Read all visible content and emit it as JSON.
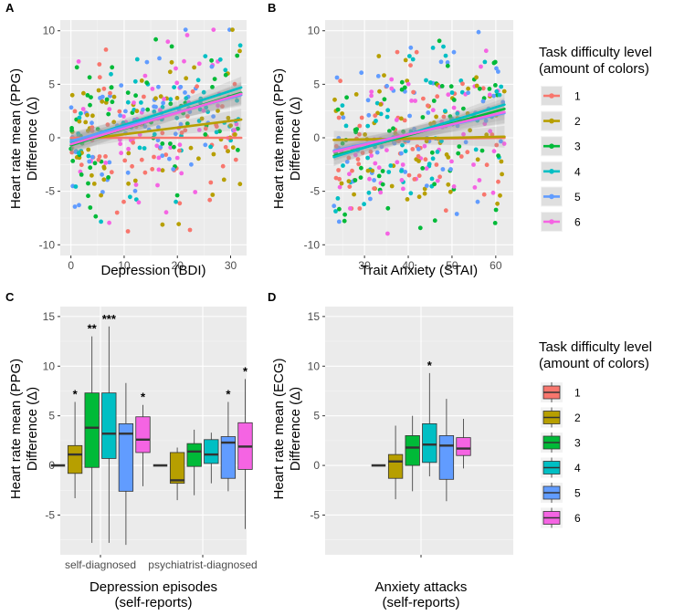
{
  "figure": {
    "panel_labels": [
      "A",
      "B",
      "C",
      "D"
    ],
    "legend_title_lines": [
      "Task difficulty level",
      "(amount of colors)"
    ],
    "levels": [
      "1",
      "2",
      "3",
      "4",
      "5",
      "6"
    ],
    "colors": [
      "#F8766D",
      "#B79F00",
      "#00BA38",
      "#00BFC4",
      "#619CFF",
      "#F564E3"
    ]
  },
  "chart_data": [
    {
      "id": "A",
      "type": "scatter",
      "xlabel": "Depression (BDI)",
      "ylabel_lines": [
        "Heart rate mean (PPG)",
        "Difference (Δ)"
      ],
      "xlim": [
        -2,
        33
      ],
      "ylim": [
        -11,
        11
      ],
      "xticks": [
        0,
        10,
        20,
        30
      ],
      "yticks": [
        -10,
        -5,
        0,
        5,
        10
      ],
      "x_range": [
        0,
        32
      ],
      "n_points": 360,
      "seed": 7,
      "fit_lines": [
        {
          "level": "1",
          "y_at_xmin": 0.0,
          "y_at_xmax": 0.0
        },
        {
          "level": "2",
          "y_at_xmin": -0.3,
          "y_at_xmax": 1.7
        },
        {
          "level": "3",
          "y_at_xmin": -0.7,
          "y_at_xmax": 4.2
        },
        {
          "level": "4",
          "y_at_xmin": -0.4,
          "y_at_xmax": 4.7
        },
        {
          "level": "5",
          "y_at_xmin": -0.3,
          "y_at_xmax": 4.0
        },
        {
          "level": "6",
          "y_at_xmin": -0.6,
          "y_at_xmax": 4.1
        }
      ]
    },
    {
      "id": "B",
      "type": "scatter",
      "xlabel": "Trait Anxiety (STAI)",
      "ylabel_lines": [
        "Heart rate mean (PPG)",
        "Difference (Δ)"
      ],
      "xlim": [
        21,
        64
      ],
      "ylim": [
        -11,
        11
      ],
      "xticks": [
        30,
        40,
        50,
        60
      ],
      "yticks": [
        -10,
        -5,
        0,
        5,
        10
      ],
      "x_range": [
        23,
        62
      ],
      "n_points": 360,
      "seed": 13,
      "fit_lines": [
        {
          "level": "1",
          "y_at_xmin": -0.2,
          "y_at_xmax": 0.0
        },
        {
          "level": "2",
          "y_at_xmin": -0.2,
          "y_at_xmax": 0.1
        },
        {
          "level": "3",
          "y_at_xmin": -1.7,
          "y_at_xmax": 2.7
        },
        {
          "level": "4",
          "y_at_xmin": -1.8,
          "y_at_xmax": 3.1
        },
        {
          "level": "5",
          "y_at_xmin": -1.2,
          "y_at_xmax": 2.3
        },
        {
          "level": "6",
          "y_at_xmin": -1.3,
          "y_at_xmax": 2.4
        }
      ]
    },
    {
      "id": "C",
      "type": "boxplot",
      "xlabel_lines": [
        "Depression episodes",
        "(self-reports)"
      ],
      "ylabel_lines": [
        "Heart rate mean (PPG)",
        "Difference (Δ)"
      ],
      "categories": [
        "self-diagnosed",
        "psychiatrist-diagnosed"
      ],
      "ylim": [
        -9,
        16
      ],
      "yticks": [
        -5,
        0,
        5,
        10,
        15
      ],
      "groups": [
        {
          "category": "self-diagnosed",
          "boxes": [
            {
              "level": "1",
              "min": 0,
              "q1": 0,
              "median": 0,
              "q3": 0,
              "max": 0,
              "sig": ""
            },
            {
              "level": "2",
              "min": -3.3,
              "q1": -0.8,
              "median": 1.1,
              "q3": 2.0,
              "max": 6.4,
              "sig": "*"
            },
            {
              "level": "3",
              "min": -7.8,
              "q1": -0.2,
              "median": 3.8,
              "q3": 7.3,
              "max": 13.0,
              "sig": "**"
            },
            {
              "level": "4",
              "min": -7.8,
              "q1": 0.7,
              "median": 3.2,
              "q3": 7.3,
              "max": 14.0,
              "sig": "***"
            },
            {
              "level": "5",
              "min": -8.0,
              "q1": -2.6,
              "median": 3.2,
              "q3": 4.2,
              "max": 8.3,
              "sig": ""
            },
            {
              "level": "6",
              "min": -2.1,
              "q1": 1.3,
              "median": 2.6,
              "q3": 4.9,
              "max": 6.1,
              "sig": "*"
            }
          ]
        },
        {
          "category": "psychiatrist-diagnosed",
          "boxes": [
            {
              "level": "1",
              "min": 0,
              "q1": 0,
              "median": 0,
              "q3": 0,
              "max": 0,
              "sig": ""
            },
            {
              "level": "2",
              "min": -3.5,
              "q1": -1.8,
              "median": -1.5,
              "q3": 1.3,
              "max": 1.8,
              "sig": ""
            },
            {
              "level": "3",
              "min": -3.0,
              "q1": -0.1,
              "median": 1.4,
              "q3": 2.2,
              "max": 3.6,
              "sig": ""
            },
            {
              "level": "4",
              "min": -1.8,
              "q1": 0.2,
              "median": 1.1,
              "q3": 2.6,
              "max": 3.3,
              "sig": ""
            },
            {
              "level": "5",
              "min": -2.6,
              "q1": -1.3,
              "median": 2.3,
              "q3": 2.9,
              "max": 6.4,
              "sig": "*"
            },
            {
              "level": "6",
              "min": -6.4,
              "q1": -0.4,
              "median": 1.9,
              "q3": 4.3,
              "max": 8.7,
              "sig": "*"
            }
          ]
        }
      ]
    },
    {
      "id": "D",
      "type": "boxplot",
      "xlabel_lines": [
        "Anxiety attacks",
        "(self-reports)"
      ],
      "ylabel_lines": [
        "Heart rate mean (ECG)",
        "Difference (Δ)"
      ],
      "categories": [
        ""
      ],
      "ylim": [
        -9,
        16
      ],
      "yticks": [
        -5,
        0,
        5,
        10,
        15
      ],
      "groups": [
        {
          "category": "",
          "boxes": [
            {
              "level": "1",
              "min": 0,
              "q1": 0,
              "median": 0,
              "q3": 0,
              "max": 0,
              "sig": ""
            },
            {
              "level": "2",
              "min": -3.4,
              "q1": -1.3,
              "median": 0.4,
              "q3": 1.1,
              "max": 4.0,
              "sig": ""
            },
            {
              "level": "3",
              "min": -2.6,
              "q1": 0.0,
              "median": 1.8,
              "q3": 3.0,
              "max": 5.0,
              "sig": ""
            },
            {
              "level": "4",
              "min": -1.1,
              "q1": 0.3,
              "median": 2.1,
              "q3": 4.2,
              "max": 9.3,
              "sig": "*"
            },
            {
              "level": "5",
              "min": -3.6,
              "q1": -1.4,
              "median": 2.0,
              "q3": 3.0,
              "max": 6.7,
              "sig": ""
            },
            {
              "level": "6",
              "min": -0.3,
              "q1": 1.0,
              "median": 1.7,
              "q3": 2.8,
              "max": 4.7,
              "sig": ""
            }
          ]
        }
      ]
    }
  ]
}
